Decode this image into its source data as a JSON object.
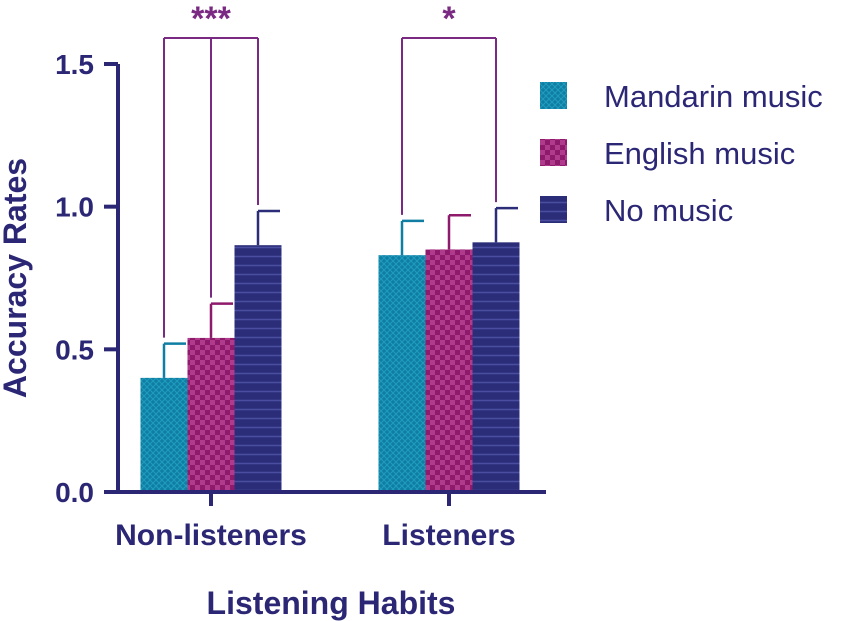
{
  "chart_data": {
    "type": "bar",
    "title": "",
    "xlabel": "Listening Habits",
    "ylabel": "Accuracy Rates",
    "ylim": [
      0,
      1.5
    ],
    "yticks": [
      0.0,
      0.5,
      1.0,
      1.5
    ],
    "ytick_labels": [
      "0.0",
      "0.5",
      "1.0",
      "1.5"
    ],
    "categories": [
      "Non-listeners",
      "Listeners"
    ],
    "series": [
      {
        "name": "Mandarin music",
        "values": [
          0.4,
          0.83
        ],
        "errors": [
          0.12,
          0.12
        ],
        "color": "#0f7ea2",
        "pattern": "crosshatch"
      },
      {
        "name": "English music",
        "values": [
          0.54,
          0.85
        ],
        "errors": [
          0.12,
          0.12
        ],
        "color": "#8e1a6c",
        "pattern": "checker"
      },
      {
        "name": "No music",
        "values": [
          0.865,
          0.875
        ],
        "errors": [
          0.12,
          0.12
        ],
        "color": "#2b2d78",
        "pattern": "horizontal-lines"
      }
    ],
    "significance": [
      {
        "category": "Non-listeners",
        "label": "***"
      },
      {
        "category": "Listeners",
        "label": "*"
      }
    ],
    "legend_position": "right",
    "grid": false,
    "colors": {
      "axis": "#2b2775",
      "significance": "#7a2a82"
    }
  }
}
